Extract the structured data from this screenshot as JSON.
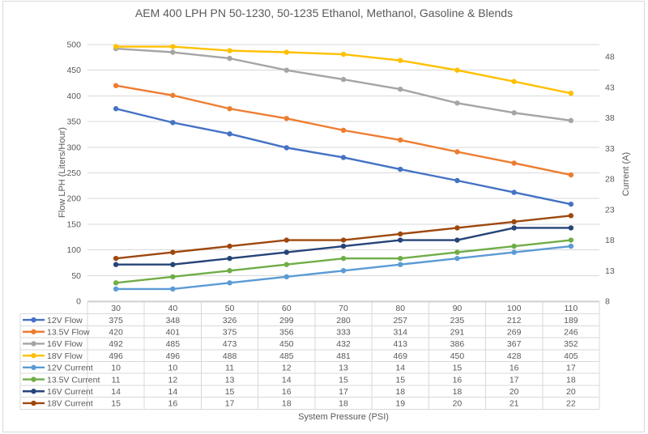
{
  "chart_data": {
    "type": "line",
    "title": "AEM 400 LPH PN 50-1230, 50-1235 Ethanol, Methanol, Gasoline & Blends",
    "xlabel": "System Pressure (PSI)",
    "ylabel_left": "Flow LPH (Liters/Hour)",
    "ylabel_right": "Current (A)",
    "legend_position": "data-table-left",
    "grid": "horizontal-only",
    "categories": [
      30,
      40,
      50,
      60,
      70,
      80,
      90,
      100,
      110
    ],
    "left_axis": {
      "min": 0,
      "max": 500,
      "ticks": [
        0,
        50,
        100,
        150,
        200,
        250,
        300,
        350,
        400,
        450,
        500
      ]
    },
    "right_axis": {
      "min": 8,
      "max": 50,
      "ticks": [
        8,
        13,
        18,
        23,
        28,
        33,
        38,
        43,
        48
      ]
    },
    "series": [
      {
        "name": "12V Flow",
        "axis": "left",
        "color": "#4472C4",
        "values": [
          375,
          348,
          326,
          299,
          280,
          257,
          235,
          212,
          189
        ]
      },
      {
        "name": "13.5V Flow",
        "axis": "left",
        "color": "#ED7D31",
        "values": [
          420,
          401,
          375,
          356,
          333,
          314,
          291,
          269,
          246
        ]
      },
      {
        "name": "16V Flow",
        "axis": "left",
        "color": "#A5A5A5",
        "values": [
          492,
          485,
          473,
          450,
          432,
          413,
          386,
          367,
          352
        ]
      },
      {
        "name": "18V Flow",
        "axis": "left",
        "color": "#FFC000",
        "values": [
          496,
          496,
          488,
          485,
          481,
          469,
          450,
          428,
          405
        ]
      },
      {
        "name": "12V Current",
        "axis": "right",
        "color": "#5B9BD5",
        "values": [
          10,
          10,
          11,
          12,
          13,
          14,
          15,
          16,
          17
        ]
      },
      {
        "name": "13.5V Current",
        "axis": "right",
        "color": "#70AD47",
        "values": [
          11,
          12,
          13,
          14,
          15,
          15,
          16,
          17,
          18
        ]
      },
      {
        "name": "16V Current",
        "axis": "right",
        "color": "#264478",
        "values": [
          14,
          14,
          15,
          16,
          17,
          18,
          18,
          20,
          20
        ]
      },
      {
        "name": "18V Current",
        "axis": "right",
        "color": "#9E480E",
        "values": [
          15,
          16,
          17,
          18,
          18,
          19,
          20,
          21,
          22
        ]
      }
    ],
    "colors": {
      "grid": "#D9D9D9",
      "axis_line": "#C6C6C6",
      "table_border": "#D9D9D9",
      "text": "#595959",
      "title_text": "#595959",
      "frame_border": "#D9D9D9"
    }
  }
}
